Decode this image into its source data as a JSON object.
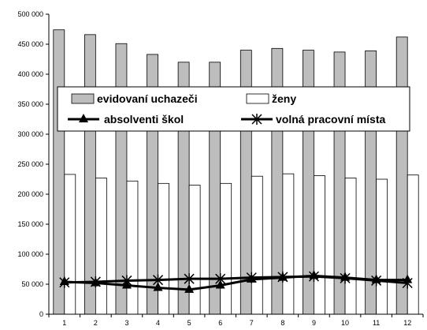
{
  "chart_data": {
    "type": "bar",
    "categories": [
      "1",
      "2",
      "3",
      "4",
      "5",
      "6",
      "7",
      "8",
      "9",
      "10",
      "11",
      "12"
    ],
    "series": [
      {
        "name": "evidovaní uchazeči",
        "kind": "bar",
        "fill": "#bdbdbd",
        "values": [
          474000,
          466000,
          451000,
          433000,
          420000,
          420000,
          440000,
          443000,
          440000,
          437000,
          439000,
          462000
        ]
      },
      {
        "name": "ženy",
        "kind": "bar",
        "fill": "#ffffff",
        "values": [
          233000,
          227000,
          222000,
          218000,
          215000,
          218000,
          230000,
          234000,
          231000,
          227000,
          225000,
          232000
        ]
      },
      {
        "name": "absolventi škol",
        "kind": "line",
        "marker": "triangle",
        "values": [
          54000,
          52000,
          48000,
          44000,
          41000,
          48000,
          58000,
          61000,
          64000,
          61000,
          57000,
          57000
        ]
      },
      {
        "name": "volná pracovní místa",
        "kind": "line",
        "marker": "star",
        "values": [
          53000,
          54000,
          56000,
          57000,
          59000,
          59000,
          61000,
          62000,
          63000,
          60000,
          56000,
          52000
        ]
      }
    ],
    "y_ticks": [
      "0",
      "50 000",
      "100 000",
      "150 000",
      "200 000",
      "250 000",
      "300 000",
      "350 000",
      "400 000",
      "450 000",
      "500 000"
    ],
    "ylim": [
      0,
      500000
    ],
    "legend": "inside-top",
    "grid": false
  }
}
